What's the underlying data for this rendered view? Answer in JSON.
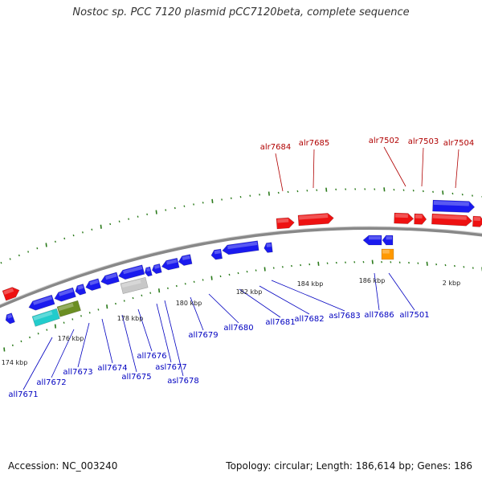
{
  "title": "Nostoc sp. PCC 7120 plasmid pCC7120beta, complete sequence",
  "footer": {
    "accession": "Accession: NC_003240",
    "summary": "Topology: circular; Length: 186,614 bp; Genes: 186"
  },
  "colors": {
    "forward_gene": "#ee1111",
    "reverse_gene": "#1a1aee",
    "forward_label": "#b00000",
    "reverse_label": "#0000c0",
    "tick": "#2a7a1a",
    "backbone": "#888888",
    "highlight_cyan": "#22cccc",
    "highlight_olive": "#6b8e23",
    "highlight_gray": "#c8c8c8",
    "highlight_orange": "#ff9900"
  },
  "forward_labels": [
    "alr7684",
    "alr7685",
    "alr7502",
    "alr7503",
    "alr7504"
  ],
  "reverse_labels": [
    "all7671",
    "all7672",
    "all7673",
    "all7674",
    "all7675",
    "all7676",
    "asl7677",
    "asl7678",
    "all7679",
    "all7680",
    "all7681",
    "all7682",
    "asl7683",
    "all7686",
    "all7501"
  ],
  "scale_labels": [
    "174 kbp",
    "176 kbp",
    "178 kbp",
    "180 kbp",
    "182 kbp",
    "184 kbp",
    "186 kbp",
    "2 kbp"
  ]
}
